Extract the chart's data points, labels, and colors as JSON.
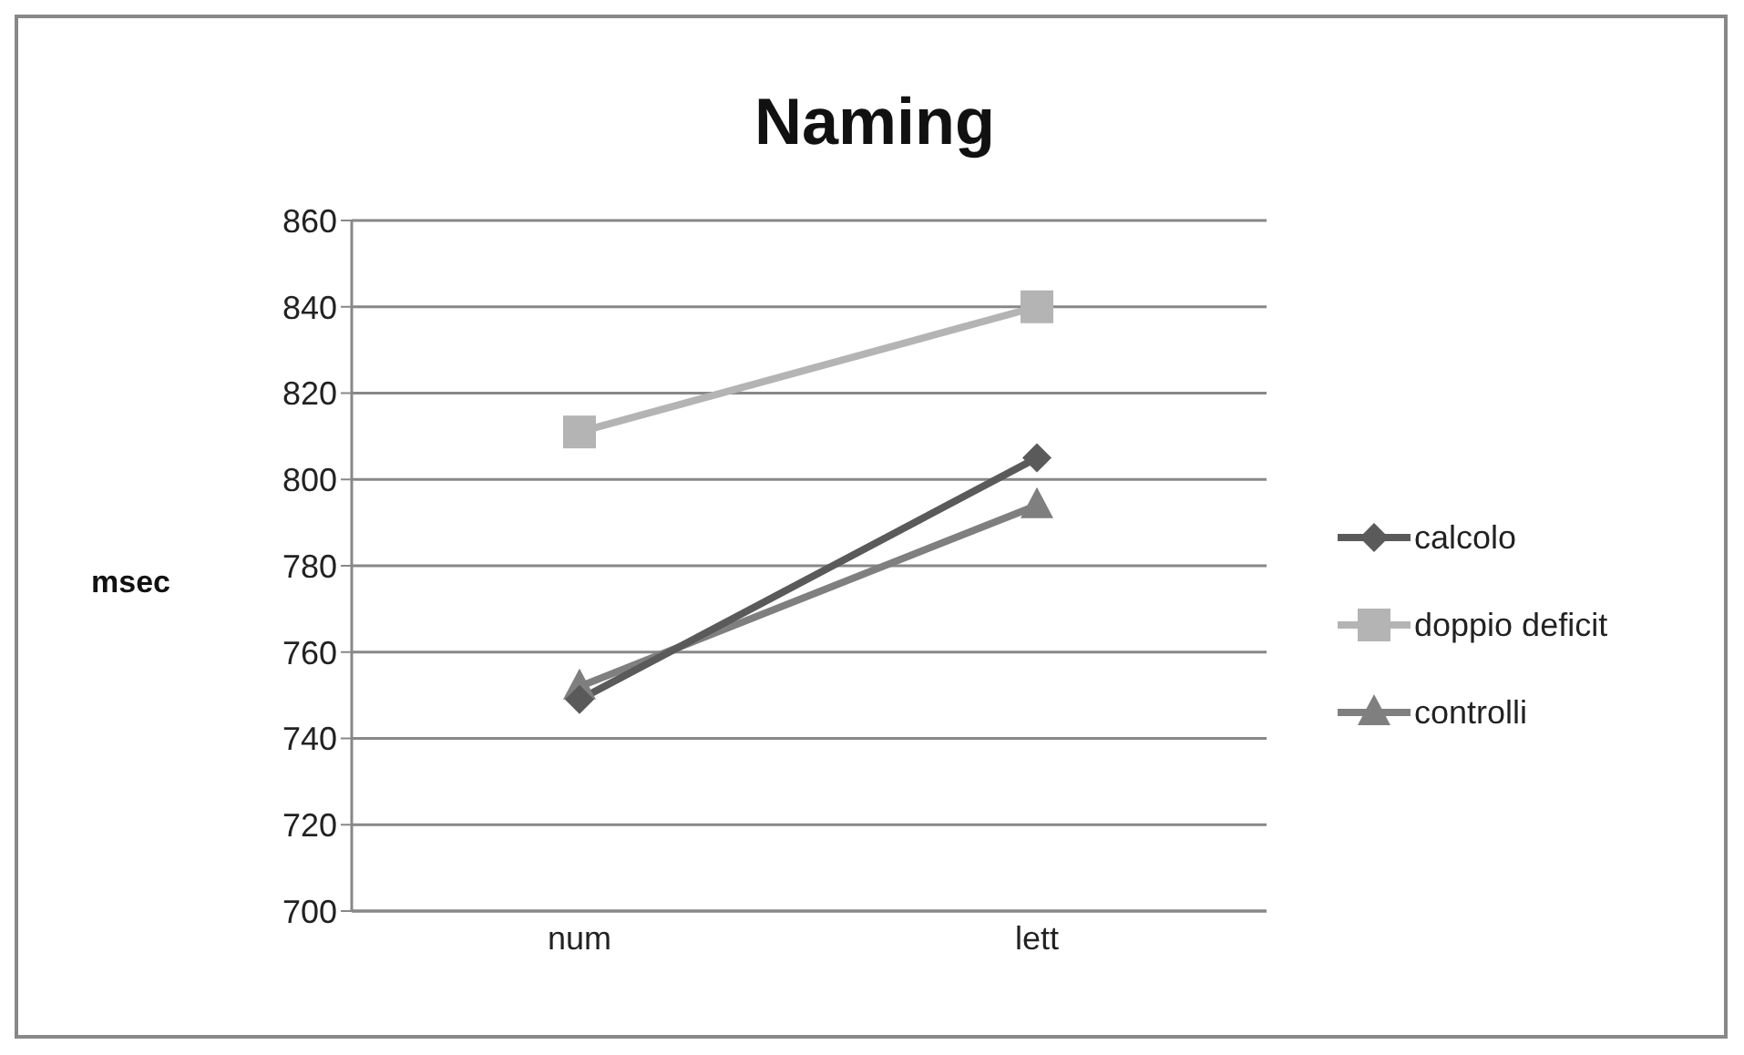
{
  "chart_data": {
    "type": "line",
    "title": "Naming",
    "ylabel": "msec",
    "categories": [
      "num",
      "lett"
    ],
    "series": [
      {
        "name": "calcolo",
        "color": "#5a5a5a",
        "values": [
          749,
          805
        ],
        "marker": "diamond"
      },
      {
        "name": "doppio deficit",
        "color": "#b4b4b4",
        "values": [
          811,
          840
        ],
        "marker": "square"
      },
      {
        "name": "controlli",
        "color": "#7f7f7f",
        "values": [
          752,
          794
        ],
        "marker": "triangle"
      }
    ],
    "ylim": [
      700,
      860
    ],
    "yticks": [
      700,
      720,
      740,
      760,
      780,
      800,
      820,
      840,
      860
    ],
    "grid": "y",
    "legend": "right",
    "line_style": "solid"
  }
}
